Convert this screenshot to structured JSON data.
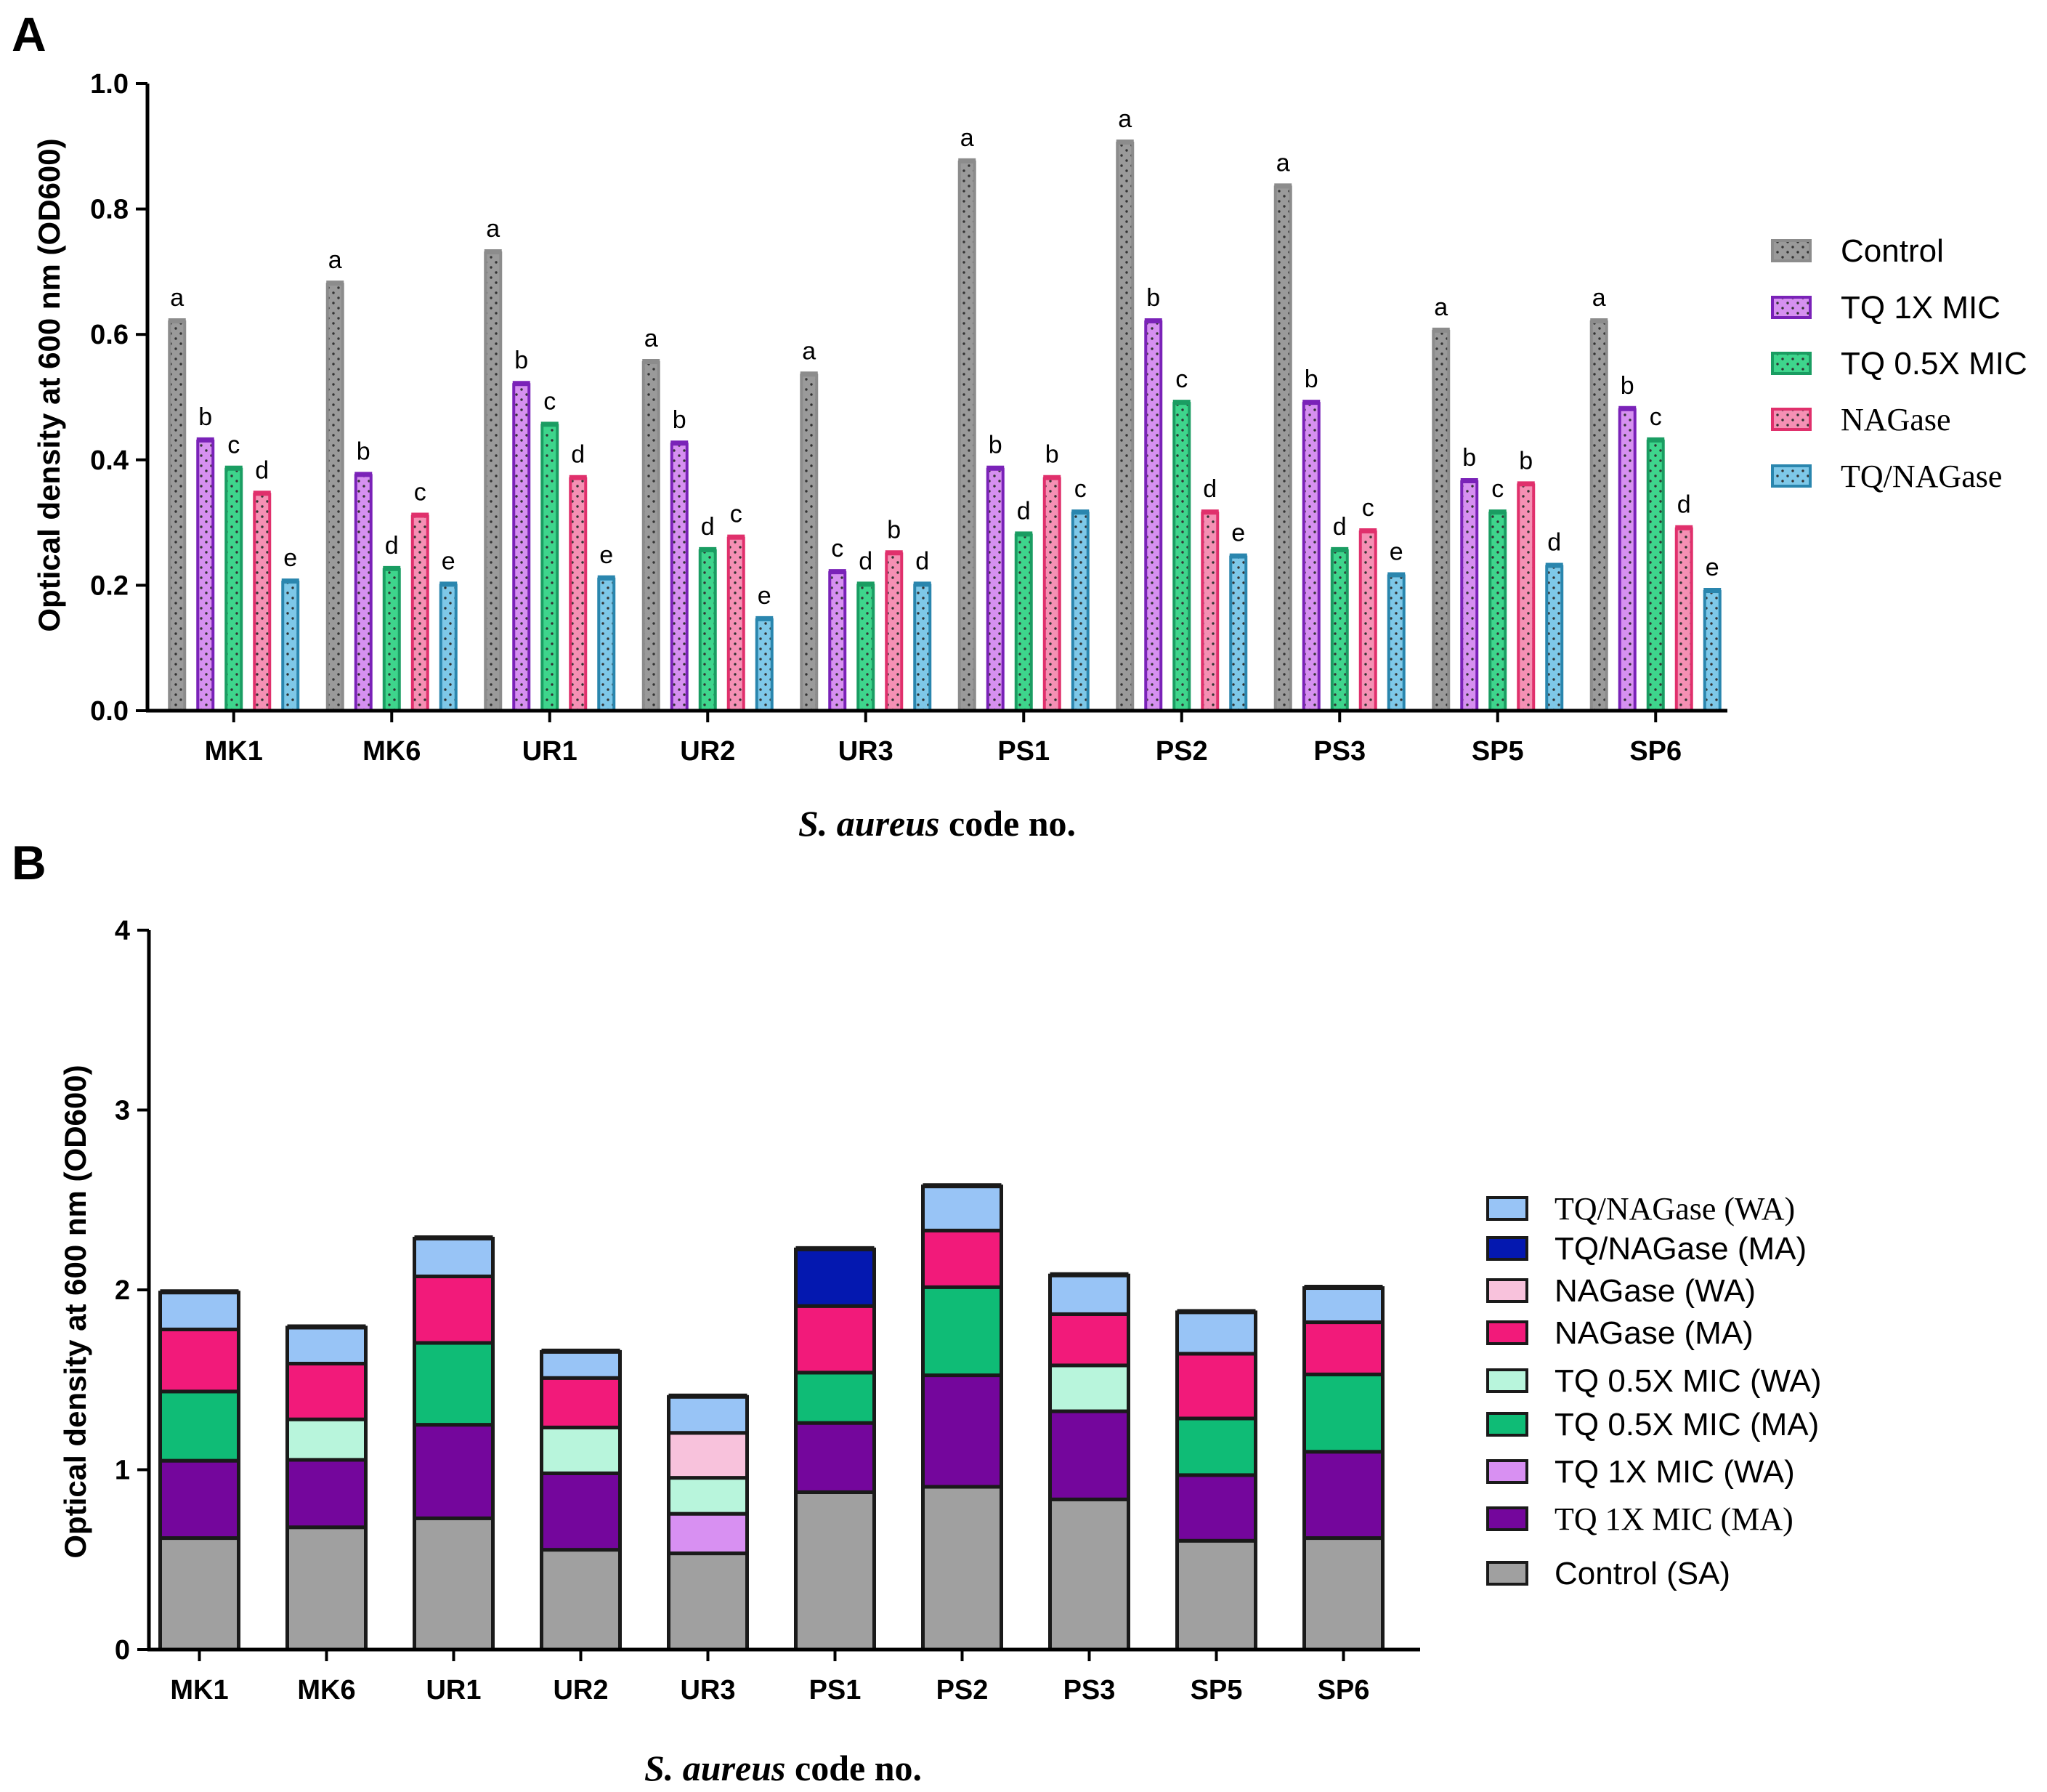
{
  "panel_labels": {
    "a": "A",
    "b": "B"
  },
  "chart_data": [
    {
      "id": "A",
      "type": "bar",
      "ylabel": "Optical density at 600 nm (OD600)",
      "xlabel_italic": "S. aureus",
      "xlabel_rest": " code no.",
      "ylim": [
        0,
        1.0
      ],
      "yticks": [
        "0.0",
        "0.2",
        "0.4",
        "0.6",
        "0.8",
        "1.0"
      ],
      "categories": [
        "MK1",
        "MK6",
        "UR1",
        "UR2",
        "UR3",
        "PS1",
        "PS2",
        "PS3",
        "SP5",
        "SP6"
      ],
      "series": [
        {
          "name": "Control",
          "color": "#8c8c8c",
          "fill": "#9a9a9a",
          "values": [
            0.62,
            0.68,
            0.73,
            0.555,
            0.535,
            0.875,
            0.905,
            0.835,
            0.605,
            0.62
          ],
          "letters": [
            "a",
            "a",
            "a",
            "a",
            "a",
            "a",
            "a",
            "a",
            "a",
            "a"
          ]
        },
        {
          "name": "TQ 1X MIC",
          "color": "#7a22b8",
          "fill": "#d690f0",
          "values": [
            0.43,
            0.375,
            0.52,
            0.425,
            0.22,
            0.385,
            0.62,
            0.49,
            0.365,
            0.48
          ],
          "letters": [
            "b",
            "b",
            "b",
            "b",
            "c",
            "b",
            "b",
            "b",
            "b",
            "b"
          ]
        },
        {
          "name": "TQ 0.5X MIC",
          "color": "#1a9d62",
          "fill": "#3ed58c",
          "values": [
            0.385,
            0.225,
            0.455,
            0.255,
            0.2,
            0.28,
            0.49,
            0.255,
            0.315,
            0.43
          ],
          "letters": [
            "c",
            "d",
            "c",
            "d",
            "d",
            "d",
            "c",
            "d",
            "c",
            "c"
          ]
        },
        {
          "name": "NAGase",
          "color": "#e0306c",
          "fill": "#f590b4",
          "values": [
            0.345,
            0.31,
            0.37,
            0.275,
            0.25,
            0.37,
            0.315,
            0.285,
            0.36,
            0.29
          ],
          "letters": [
            "d",
            "c",
            "d",
            "c",
            "b",
            "b",
            "d",
            "c",
            "b",
            "d"
          ]
        },
        {
          "name": "TQ/NAGase",
          "color": "#2a86ae",
          "fill": "#7ec8e8",
          "values": [
            0.205,
            0.2,
            0.21,
            0.145,
            0.2,
            0.315,
            0.245,
            0.215,
            0.23,
            0.19
          ],
          "letters": [
            "e",
            "e",
            "e",
            "e",
            "d",
            "c",
            "e",
            "e",
            "d",
            "e"
          ]
        }
      ],
      "legend_position": "right"
    },
    {
      "id": "B",
      "type": "bar",
      "stacked": true,
      "ylabel": "Optical density at 600 nm (OD600)",
      "xlabel_italic": "S. aureus",
      "xlabel_rest": " code no.",
      "ylim": [
        0,
        4
      ],
      "yticks": [
        "0",
        "1",
        "2",
        "3",
        "4"
      ],
      "categories": [
        "MK1",
        "MK6",
        "UR1",
        "UR2",
        "UR3",
        "PS1",
        "PS2",
        "PS3",
        "SP5",
        "SP6"
      ],
      "stack_order": [
        "Control (SA)",
        "TQ 1X MIC (MA)",
        "TQ 1X MIC (WA)",
        "TQ 0.5X MIC (MA)",
        "TQ 0.5X MIC (WA)",
        "NAGase (MA)",
        "NAGase (WA)",
        "TQ/NAGase (MA)",
        "TQ/NAGase (WA)"
      ],
      "series": [
        {
          "name": "Control (SA)",
          "fill": "#a0a0a0",
          "values": [
            0.62,
            0.68,
            0.73,
            0.555,
            0.535,
            0.875,
            0.905,
            0.835,
            0.605,
            0.62
          ]
        },
        {
          "name": "TQ 1X MIC (MA)",
          "fill": "#74069c",
          "values": [
            0.43,
            0.375,
            0.52,
            0.425,
            0,
            0.385,
            0.62,
            0.49,
            0.365,
            0.48
          ]
        },
        {
          "name": "TQ 1X MIC (WA)",
          "fill": "#d890f2",
          "values": [
            0,
            0,
            0,
            0,
            0.22,
            0,
            0,
            0,
            0,
            0
          ]
        },
        {
          "name": "TQ 0.5X MIC (MA)",
          "fill": "#0fbc76",
          "values": [
            0.385,
            0,
            0.455,
            0,
            0,
            0.28,
            0.49,
            0,
            0.315,
            0.43
          ]
        },
        {
          "name": "TQ 0.5X MIC (WA)",
          "fill": "#b8f5dc",
          "values": [
            0,
            0.225,
            0,
            0.255,
            0.2,
            0,
            0,
            0.255,
            0,
            0
          ]
        },
        {
          "name": "NAGase (MA)",
          "fill": "#f21a7a",
          "values": [
            0.345,
            0.31,
            0.37,
            0.275,
            0,
            0.37,
            0.315,
            0.285,
            0.36,
            0.29
          ]
        },
        {
          "name": "NAGase (WA)",
          "fill": "#f8c2dc",
          "values": [
            0,
            0,
            0,
            0,
            0.25,
            0,
            0,
            0,
            0,
            0
          ]
        },
        {
          "name": "TQ/NAGase (MA)",
          "fill": "#0418b0",
          "values": [
            0,
            0,
            0,
            0,
            0,
            0.315,
            0,
            0,
            0,
            0
          ]
        },
        {
          "name": "TQ/NAGase (WA)",
          "fill": "#98c4f6",
          "values": [
            0.205,
            0.2,
            0.21,
            0.145,
            0.2,
            0,
            0.245,
            0.215,
            0.23,
            0.19
          ]
        }
      ],
      "totals": [
        1.985,
        1.79,
        2.285,
        1.655,
        1.405,
        2.225,
        2.575,
        2.08,
        1.875,
        2.01
      ],
      "legend_order": [
        "TQ/NAGase (WA)",
        "TQ/NAGase (MA)",
        "NAGase (WA)",
        "NAGase (MA)",
        "TQ 0.5X MIC (WA)",
        "TQ 0.5X MIC (MA)",
        "TQ 1X MIC (WA)",
        "TQ 1X MIC (MA)",
        "Control (SA)"
      ],
      "legend_position": "right"
    }
  ]
}
